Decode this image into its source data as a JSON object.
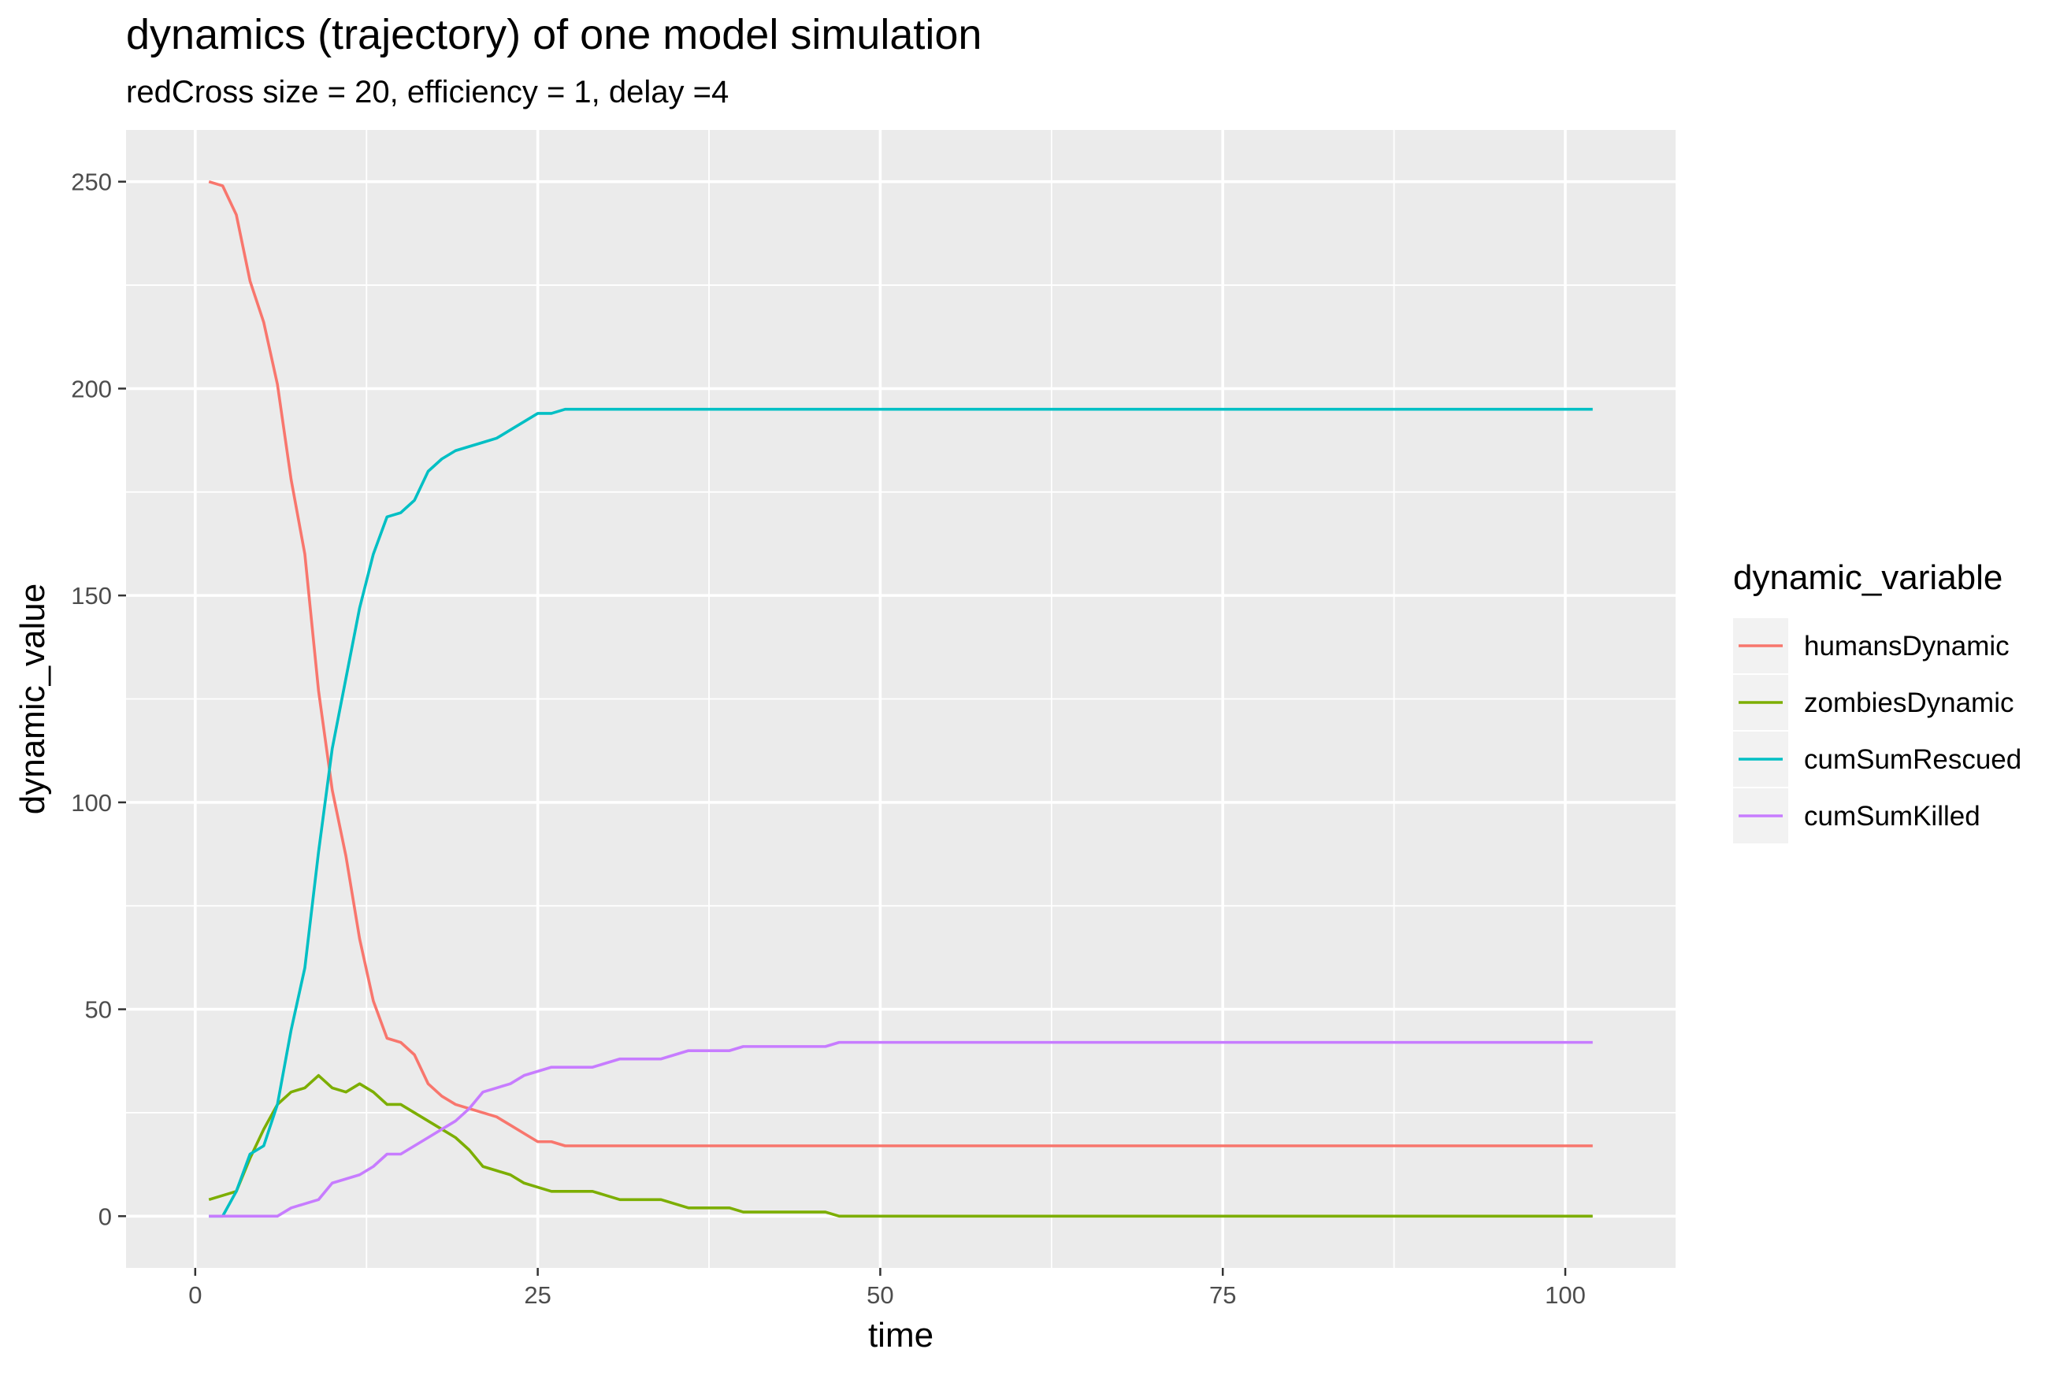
{
  "chart_data": {
    "type": "line",
    "title": "dynamics (trajectory) of one model simulation",
    "subtitle": "redCross size = 20, efficiency = 1, delay =4",
    "xlabel": "time",
    "ylabel": "dynamic_value",
    "xlim": [
      -5.05,
      108.05
    ],
    "ylim": [
      -12.5,
      262.5
    ],
    "x_ticks": [
      0,
      25,
      50,
      75,
      100
    ],
    "x_tick_labels": [
      "0",
      "25",
      "50",
      "75",
      "100"
    ],
    "y_ticks": [
      0,
      50,
      100,
      150,
      200,
      250
    ],
    "y_tick_labels": [
      "0",
      "50",
      "100",
      "150",
      "200",
      "250"
    ],
    "grid": true,
    "legend": {
      "title": "dynamic_variable",
      "position": "right"
    },
    "x": [
      1,
      2,
      3,
      4,
      5,
      6,
      7,
      8,
      9,
      10,
      11,
      12,
      13,
      14,
      15,
      16,
      17,
      18,
      19,
      20,
      21,
      22,
      23,
      24,
      25,
      26,
      27,
      28,
      29,
      30,
      31,
      32,
      33,
      34,
      35,
      36,
      37,
      38,
      39,
      40,
      41,
      42,
      43,
      44,
      45,
      46,
      47,
      48,
      49,
      50,
      51,
      52,
      53,
      54,
      55,
      56,
      57,
      58,
      59,
      60,
      61,
      62,
      63,
      64,
      65,
      66,
      67,
      68,
      69,
      70,
      71,
      72,
      73,
      74,
      75,
      76,
      77,
      78,
      79,
      80,
      81,
      82,
      83,
      84,
      85,
      86,
      87,
      88,
      89,
      90,
      91,
      92,
      93,
      94,
      95,
      96,
      97,
      98,
      99,
      100,
      101,
      102
    ],
    "series": [
      {
        "name": "humansDynamic",
        "color": "#F8766D",
        "values": [
          250,
          249,
          242,
          226,
          216,
          201,
          178,
          160,
          127,
          103,
          87,
          67,
          52,
          43,
          42,
          39,
          32,
          29,
          27,
          26,
          25,
          24,
          22,
          20,
          18,
          18,
          17,
          17,
          17,
          17,
          17,
          17,
          17,
          17,
          17,
          17,
          17,
          17,
          17,
          17,
          17,
          17,
          17,
          17,
          17,
          17,
          17,
          17,
          17,
          17,
          17,
          17,
          17,
          17,
          17,
          17,
          17,
          17,
          17,
          17,
          17,
          17,
          17,
          17,
          17,
          17,
          17,
          17,
          17,
          17,
          17,
          17,
          17,
          17,
          17,
          17,
          17,
          17,
          17,
          17,
          17,
          17,
          17,
          17,
          17,
          17,
          17,
          17,
          17,
          17,
          17,
          17,
          17,
          17,
          17,
          17,
          17,
          17,
          17,
          17,
          17,
          17
        ]
      },
      {
        "name": "zombiesDynamic",
        "color": "#7CAE00",
        "values": [
          4,
          5,
          6,
          14,
          21,
          27,
          30,
          31,
          34,
          31,
          30,
          32,
          30,
          27,
          27,
          25,
          23,
          21,
          19,
          16,
          12,
          11,
          10,
          8,
          7,
          6,
          6,
          6,
          6,
          5,
          4,
          4,
          4,
          4,
          3,
          2,
          2,
          2,
          2,
          1,
          1,
          1,
          1,
          1,
          1,
          1,
          0,
          0,
          0,
          0,
          0,
          0,
          0,
          0,
          0,
          0,
          0,
          0,
          0,
          0,
          0,
          0,
          0,
          0,
          0,
          0,
          0,
          0,
          0,
          0,
          0,
          0,
          0,
          0,
          0,
          0,
          0,
          0,
          0,
          0,
          0,
          0,
          0,
          0,
          0,
          0,
          0,
          0,
          0,
          0,
          0,
          0,
          0,
          0,
          0,
          0,
          0,
          0,
          0,
          0,
          0,
          0
        ]
      },
      {
        "name": "cumSumRescued",
        "color": "#00BFC4",
        "values": [
          0,
          0,
          6,
          15,
          17,
          27,
          45,
          60,
          88,
          113,
          130,
          147,
          160,
          169,
          170,
          173,
          180,
          183,
          185,
          186,
          187,
          188,
          190,
          192,
          194,
          194,
          195,
          195,
          195,
          195,
          195,
          195,
          195,
          195,
          195,
          195,
          195,
          195,
          195,
          195,
          195,
          195,
          195,
          195,
          195,
          195,
          195,
          195,
          195,
          195,
          195,
          195,
          195,
          195,
          195,
          195,
          195,
          195,
          195,
          195,
          195,
          195,
          195,
          195,
          195,
          195,
          195,
          195,
          195,
          195,
          195,
          195,
          195,
          195,
          195,
          195,
          195,
          195,
          195,
          195,
          195,
          195,
          195,
          195,
          195,
          195,
          195,
          195,
          195,
          195,
          195,
          195,
          195,
          195,
          195,
          195,
          195,
          195,
          195,
          195,
          195,
          195
        ]
      },
      {
        "name": "cumSumKilled",
        "color": "#C77CFF",
        "values": [
          0,
          0,
          0,
          0,
          0,
          0,
          2,
          3,
          4,
          8,
          9,
          10,
          12,
          15,
          15,
          17,
          19,
          21,
          23,
          26,
          30,
          31,
          32,
          34,
          35,
          36,
          36,
          36,
          36,
          37,
          38,
          38,
          38,
          38,
          39,
          40,
          40,
          40,
          40,
          41,
          41,
          41,
          41,
          41,
          41,
          41,
          42,
          42,
          42,
          42,
          42,
          42,
          42,
          42,
          42,
          42,
          42,
          42,
          42,
          42,
          42,
          42,
          42,
          42,
          42,
          42,
          42,
          42,
          42,
          42,
          42,
          42,
          42,
          42,
          42,
          42,
          42,
          42,
          42,
          42,
          42,
          42,
          42,
          42,
          42,
          42,
          42,
          42,
          42,
          42,
          42,
          42,
          42,
          42,
          42,
          42,
          42,
          42,
          42,
          42,
          42,
          42
        ]
      }
    ]
  }
}
